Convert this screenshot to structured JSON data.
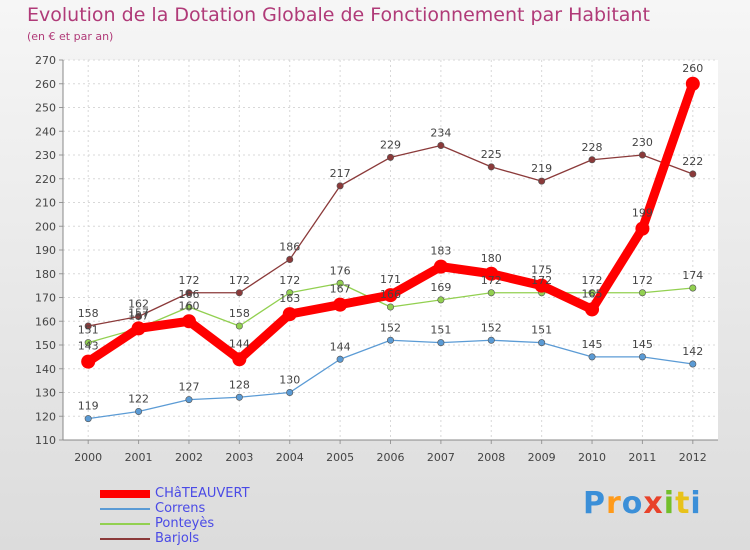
{
  "title": "Evolution de la Dotation Globale de Fonctionnement par Habitant",
  "subtitle": "(en € et par an)",
  "logo": "Proxiti",
  "chart_data": {
    "type": "line",
    "title": "Evolution de la Dotation Globale de Fonctionnement par Habitant",
    "ylabel": "(en € et par an)",
    "xlabel": "",
    "x": [
      "2000",
      "2001",
      "2002",
      "2003",
      "2004",
      "2005",
      "2006",
      "2007",
      "2008",
      "2009",
      "2010",
      "2011",
      "2012"
    ],
    "ylim": [
      110,
      270
    ],
    "yticks": [
      110,
      120,
      130,
      140,
      150,
      160,
      170,
      180,
      190,
      200,
      210,
      220,
      230,
      240,
      250,
      260,
      270
    ],
    "series": [
      {
        "name": "CHâTEAUVERT",
        "color": "#ff0000",
        "values": [
          143,
          157,
          160,
          144,
          163,
          167,
          171,
          183,
          180,
          175,
          165,
          199,
          260
        ]
      },
      {
        "name": "Correns",
        "color": "#5b9bd5",
        "values": [
          119,
          122,
          127,
          128,
          130,
          144,
          152,
          151,
          152,
          151,
          145,
          145,
          142
        ]
      },
      {
        "name": "Ponteyès",
        "color": "#92d050",
        "values": [
          151,
          157,
          166,
          158,
          172,
          176,
          166,
          169,
          172,
          172,
          172,
          172,
          174
        ]
      },
      {
        "name": "Barjols",
        "color": "#8b3a3a",
        "values": [
          158,
          162,
          172,
          172,
          186,
          217,
          229,
          234,
          225,
          219,
          228,
          230,
          222
        ]
      }
    ]
  }
}
